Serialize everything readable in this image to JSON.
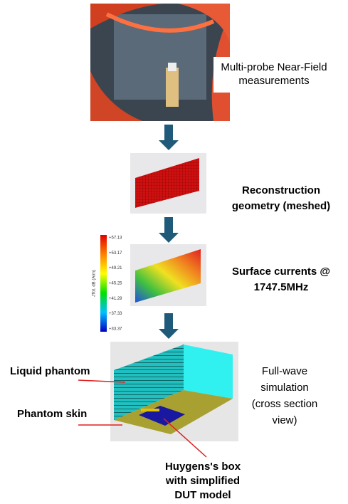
{
  "measurement": {
    "lines": [
      "Multi-probe Near-Field",
      "measurements"
    ]
  },
  "reconstruction": {
    "lines": [
      "Reconstruction",
      "geometry (meshed)"
    ]
  },
  "surface_currents": {
    "lines": [
      "Surface currents @",
      "1747.5MHz"
    ],
    "colorbar_title": "JTot. dB (A/m)",
    "colorbar_labels": [
      "+57.13",
      "+53.17",
      "+49.21",
      "+45.25",
      "+41.29",
      "+37.33",
      "+33.37"
    ]
  },
  "simulation": {
    "lines": [
      "Full-wave",
      "simulation",
      "(cross section",
      "view)"
    ]
  },
  "annotations": {
    "liquid_phantom": "Liquid phantom",
    "phantom_skin": "Phantom skin",
    "huygens_box": [
      "Huygens's box",
      "with simplified",
      "DUT model"
    ]
  }
}
